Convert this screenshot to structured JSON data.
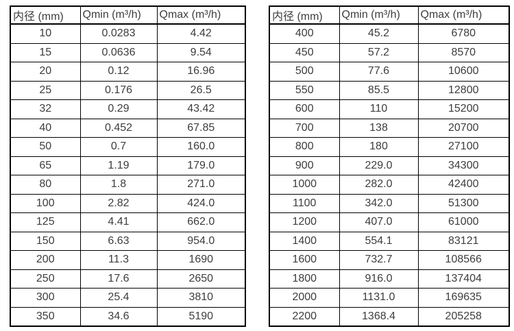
{
  "page": {
    "background_color": "#ffffff",
    "text_color": "#3d3d3d",
    "border_color": "#000000"
  },
  "tables": [
    {
      "name": "flow-spec-table-small-diameters",
      "headers": [
        "内径 (mm)",
        "Qmin (m³/h)",
        "Qmax (m³/h)"
      ],
      "rows": [
        [
          "10",
          "0.0283",
          "4.42"
        ],
        [
          "15",
          "0.0636",
          "9.54"
        ],
        [
          "20",
          "0.12",
          "16.96"
        ],
        [
          "25",
          "0.176",
          "26.5"
        ],
        [
          "32",
          "0.29",
          "43.42"
        ],
        [
          "40",
          "0.452",
          "67.85"
        ],
        [
          "50",
          "0.7",
          "160.0"
        ],
        [
          "65",
          "1.19",
          "179.0"
        ],
        [
          "80",
          "1.8",
          "271.0"
        ],
        [
          "100",
          "2.82",
          "424.0"
        ],
        [
          "125",
          "4.41",
          "662.0"
        ],
        [
          "150",
          "6.63",
          "954.0"
        ],
        [
          "200",
          "11.3",
          "1690"
        ],
        [
          "250",
          "17.6",
          "2650"
        ],
        [
          "300",
          "25.4",
          "3810"
        ],
        [
          "350",
          "34.6",
          "5190"
        ]
      ]
    },
    {
      "name": "flow-spec-table-large-diameters",
      "headers": [
        "内径 (mm)",
        "Qmin (m³/h)",
        "Qmax (m³/h)"
      ],
      "rows": [
        [
          "400",
          "45.2",
          "6780"
        ],
        [
          "450",
          "57.2",
          "8570"
        ],
        [
          "500",
          "77.6",
          "10600"
        ],
        [
          "550",
          "85.5",
          "12800"
        ],
        [
          "600",
          "110",
          "15200"
        ],
        [
          "700",
          "138",
          "20700"
        ],
        [
          "800",
          "180",
          "27100"
        ],
        [
          "900",
          "229.0",
          "34300"
        ],
        [
          "1000",
          "282.0",
          "42400"
        ],
        [
          "1100",
          "342.0",
          "51300"
        ],
        [
          "1200",
          "407.0",
          "61000"
        ],
        [
          "1400",
          "554.1",
          "83121"
        ],
        [
          "1600",
          "732.7",
          "108566"
        ],
        [
          "1800",
          "916.0",
          "137404"
        ],
        [
          "2000",
          "1131.0",
          "169635"
        ],
        [
          "2200",
          "1368.4",
          "205258"
        ]
      ]
    }
  ]
}
